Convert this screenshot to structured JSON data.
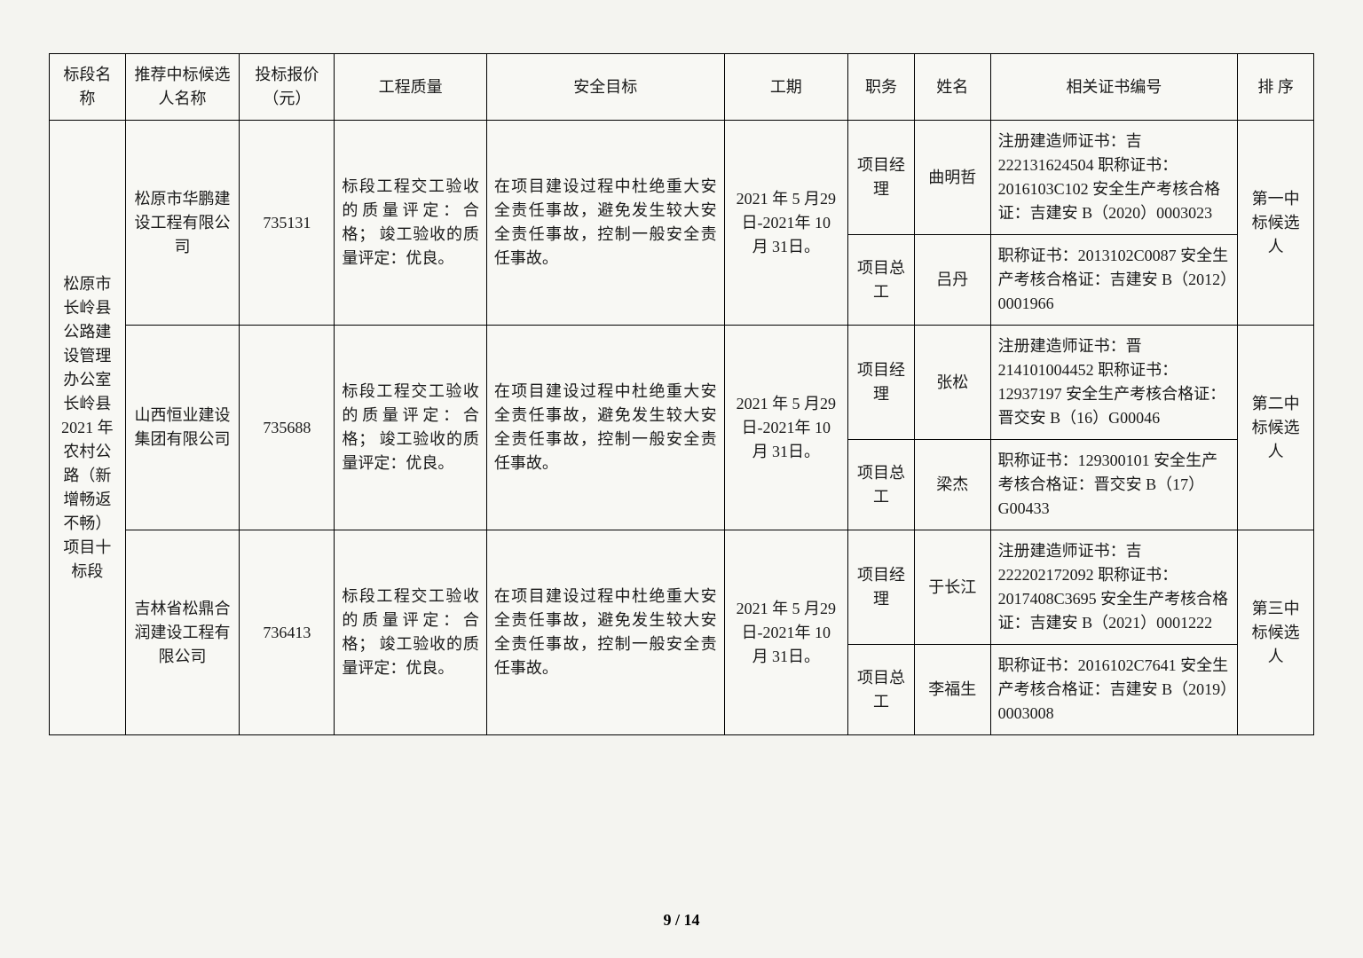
{
  "headers": {
    "section": "标段名称",
    "bidder": "推荐中标候选人名称",
    "price": "投标报价（元）",
    "quality": "工程质量",
    "safety": "安全目标",
    "period": "工期",
    "role": "职务",
    "name": "姓名",
    "cert": "相关证书编号",
    "rank": "排 序"
  },
  "section_name": "松原市长岭县公路建设管理办公室长岭县\n2021 年农村公路（新增畅返不畅）项目十标段",
  "companies": [
    {
      "bidder": "松原市华鹏建设工程有限公司",
      "price": "735131",
      "quality": "标段工程交工验收的质量评定：合格；\n竣工验收的质量评定：优良。",
      "safety": "在项目建设过程中杜绝重大安全责任事故，避免发生较大安全责任事故，控制一般安全责任事故。",
      "period": "2021 年 5 月29 日-2021年 10 月 31日。",
      "rank": "第一中标候选人",
      "staff": [
        {
          "role": "项目经理",
          "name": "曲明哲",
          "cert": "注册建造师证书：吉\n222131624504\n职称证书：2016103C102\n安全生产考核合格证：吉建安 B（2020）0003023"
        },
        {
          "role": "项目总工",
          "name": "吕丹",
          "cert": "职称证书：2013102C0087\n安全生产考核合格证：吉建安 B（2012）0001966"
        }
      ]
    },
    {
      "bidder": "山西恒业建设集团有限公司",
      "price": "735688",
      "quality": "标段工程交工验收的质量评定：合格；\n竣工验收的质量评定：优良。",
      "safety": "在项目建设过程中杜绝重大安全责任事故，避免发生较大安全责任事故，控制一般安全责任事故。",
      "period": "2021 年 5 月29 日-2021年 10 月 31日。",
      "rank": "第二中标候选人",
      "staff": [
        {
          "role": "项目经理",
          "name": "张松",
          "cert": "注册建造师证书：晋\n214101004452\n职称证书：12937197\n安全生产考核合格证：晋交安 B（16）G00046"
        },
        {
          "role": "项目总工",
          "name": "梁杰",
          "cert": "职称证书：129300101\n安全生产考核合格证：晋交安 B（17）G00433"
        }
      ]
    },
    {
      "bidder": "吉林省松鼎合润建设工程有限公司",
      "price": "736413",
      "quality": "标段工程交工验收的质量评定：合格；\n竣工验收的质量评定：优良。",
      "safety": "在项目建设过程中杜绝重大安全责任事故，避免发生较大安全责任事故，控制一般安全责任事故。",
      "period": "2021 年 5 月29 日-2021年 10 月 31日。",
      "rank": "第三中标候选人",
      "staff": [
        {
          "role": "项目经理",
          "name": "于长江",
          "cert": "注册建造师证书：吉\n222202172092\n职称证书：2017408C3695\n安全生产考核合格证：吉建安 B（2021）0001222"
        },
        {
          "role": "项目总工",
          "name": "李福生",
          "cert": "职称证书：2016102C7641\n安全生产考核合格证：吉建安 B（2019）0003008"
        }
      ]
    }
  ],
  "page_number": "9 / 14",
  "col_widths": {
    "section": 80,
    "bidder": 120,
    "price": 100,
    "quality": 160,
    "safety": 250,
    "period": 130,
    "role": 70,
    "name": 80,
    "cert": 260,
    "rank": 80
  },
  "colors": {
    "bg": "#f8f8f4",
    "border": "#000000",
    "text": "#1a1a1a"
  },
  "font_size_pt": 14
}
